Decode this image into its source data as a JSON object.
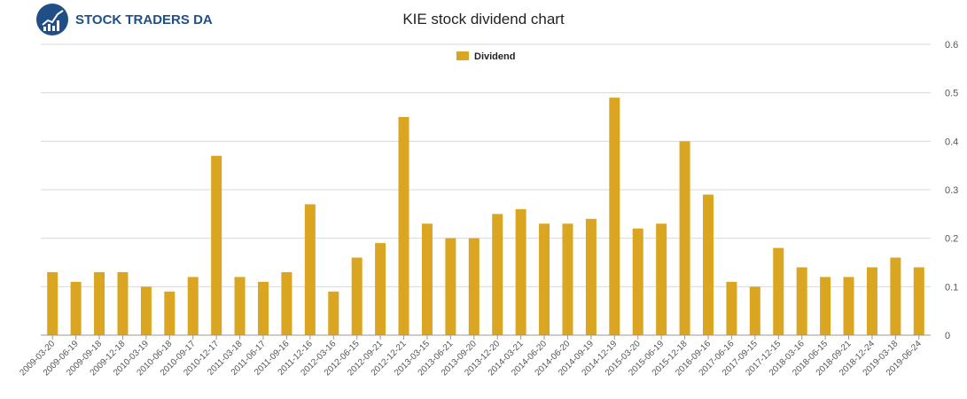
{
  "brand": {
    "name": "STOCK TRADERS DAILY"
  },
  "colors": {
    "bar": "#DAA520",
    "grid": "#d9d9d9",
    "brand_blue": "#1f4f86"
  },
  "chart_data": {
    "type": "bar",
    "title": "KIE stock dividend chart",
    "legend": "top-center",
    "grid": true,
    "xlabel": "",
    "ylabel": "",
    "ylim": [
      0,
      0.6
    ],
    "yticks": [
      "0",
      "0.1",
      "0.2",
      "0.3",
      "0.4",
      "0.5",
      "0.6"
    ],
    "categories": [
      "2009-03-20",
      "2009-06-19",
      "2009-09-18",
      "2009-12-18",
      "2010-03-19",
      "2010-06-18",
      "2010-09-17",
      "2010-12-17",
      "2011-03-18",
      "2011-06-17",
      "2011-09-16",
      "2011-12-16",
      "2012-03-16",
      "2012-06-15",
      "2012-09-21",
      "2012-12-21",
      "2013-03-15",
      "2013-06-21",
      "2013-09-20",
      "2013-12-20",
      "2014-03-21",
      "2014-06-20",
      "2014-06-20",
      "2014-09-19",
      "2014-12-19",
      "2015-03-20",
      "2015-06-19",
      "2015-12-18",
      "2016-09-16",
      "2017-06-16",
      "2017-09-15",
      "2017-12-15",
      "2018-03-16",
      "2018-06-15",
      "2018-09-21",
      "2018-12-24",
      "2019-03-18",
      "2019-06-24"
    ],
    "series": [
      {
        "name": "Dividend",
        "values": [
          0.13,
          0.11,
          0.13,
          0.13,
          0.1,
          0.09,
          0.12,
          0.37,
          0.12,
          0.11,
          0.13,
          0.27,
          0.09,
          0.16,
          0.19,
          0.45,
          0.23,
          0.2,
          0.2,
          0.25,
          0.26,
          0.23,
          0.23,
          0.24,
          0.49,
          0.22,
          0.23,
          0.4,
          0.29,
          0.11,
          0.1,
          0.18,
          0.14,
          0.12,
          0.12,
          0.14,
          0.16,
          0.14
        ]
      }
    ]
  }
}
